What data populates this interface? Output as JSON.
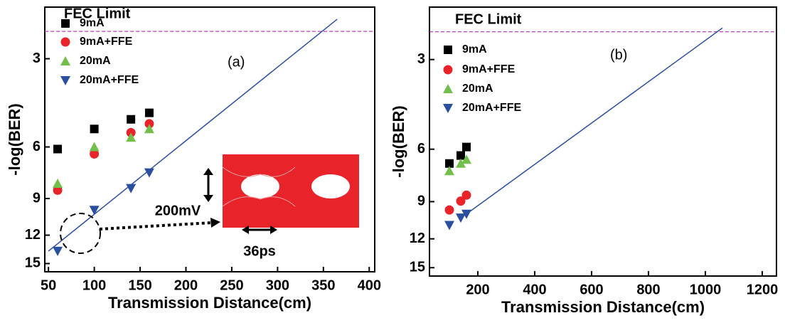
{
  "chart_data": [
    {
      "type": "scatter",
      "label": "(a)",
      "x_label": "Transmission Distance(cm)",
      "y_label": "-log(BER)",
      "log_y": true,
      "y_reversed": true,
      "xlim": [
        46,
        406
      ],
      "ylim": [
        2,
        16
      ],
      "xticks": [
        50,
        100,
        150,
        200,
        250,
        300,
        350,
        400
      ],
      "yticks": [
        3,
        6,
        9,
        12,
        15
      ],
      "fec_limit": {
        "label": "FEC Limit",
        "value": 2.42,
        "color": "#c040c0"
      },
      "x": [
        60,
        100,
        140,
        160
      ],
      "series": [
        {
          "name": "9mA",
          "color": "#000000",
          "marker": "square",
          "values": [
            6.1,
            5.21,
            4.83,
            4.59
          ]
        },
        {
          "name": "9mA+FFE",
          "color": "#e8232a",
          "marker": "circle",
          "values": [
            8.43,
            6.34,
            5.36,
            5.0
          ]
        },
        {
          "name": "20mA",
          "color": "#72c04b",
          "marker": "triangle-up",
          "values": [
            8.0,
            6.0,
            5.57,
            5.21
          ]
        },
        {
          "name": "20mA+FFE",
          "color": "#2a4ea0",
          "marker": "triangle-down",
          "values": [
            13.6,
            9.85,
            8.3,
            7.34
          ]
        }
      ],
      "fit": {
        "color": "#2a4ea0",
        "x": [
          50,
          365
        ],
        "values": [
          13.6,
          2.2
        ]
      },
      "inset": {
        "amplitude": "200mV",
        "period": "36ps"
      }
    },
    {
      "type": "scatter",
      "label": "(b)",
      "x_label": "Transmission Distance(cm)",
      "y_label": "-log(BER)",
      "log_y": true,
      "y_reversed": true,
      "xlim": [
        30,
        1250
      ],
      "ylim": [
        2,
        16
      ],
      "xticks": [
        200,
        400,
        600,
        800,
        1000,
        1200
      ],
      "yticks": [
        3,
        6,
        9,
        12,
        15
      ],
      "fec_limit": {
        "label": "FEC Limit",
        "value": 2.42,
        "color": "#c040c0"
      },
      "x": [
        100,
        140,
        160
      ],
      "series": [
        {
          "name": "9mA",
          "color": "#000000",
          "marker": "square",
          "values": [
            6.7,
            6.3,
            5.9
          ]
        },
        {
          "name": "9mA+FFE",
          "color": "#e8232a",
          "marker": "circle",
          "values": [
            9.6,
            8.96,
            8.56
          ]
        },
        {
          "name": "20mA",
          "color": "#72c04b",
          "marker": "triangle-up",
          "values": [
            7.1,
            6.7,
            6.5
          ]
        },
        {
          "name": "20mA+FFE",
          "color": "#2a4ea0",
          "marker": "triangle-down",
          "values": [
            10.8,
            10.2,
            9.9
          ]
        }
      ],
      "fit": {
        "color": "#2a4ea0",
        "x": [
          160,
          1060
        ],
        "values": [
          9.9,
          2.35
        ]
      }
    }
  ]
}
